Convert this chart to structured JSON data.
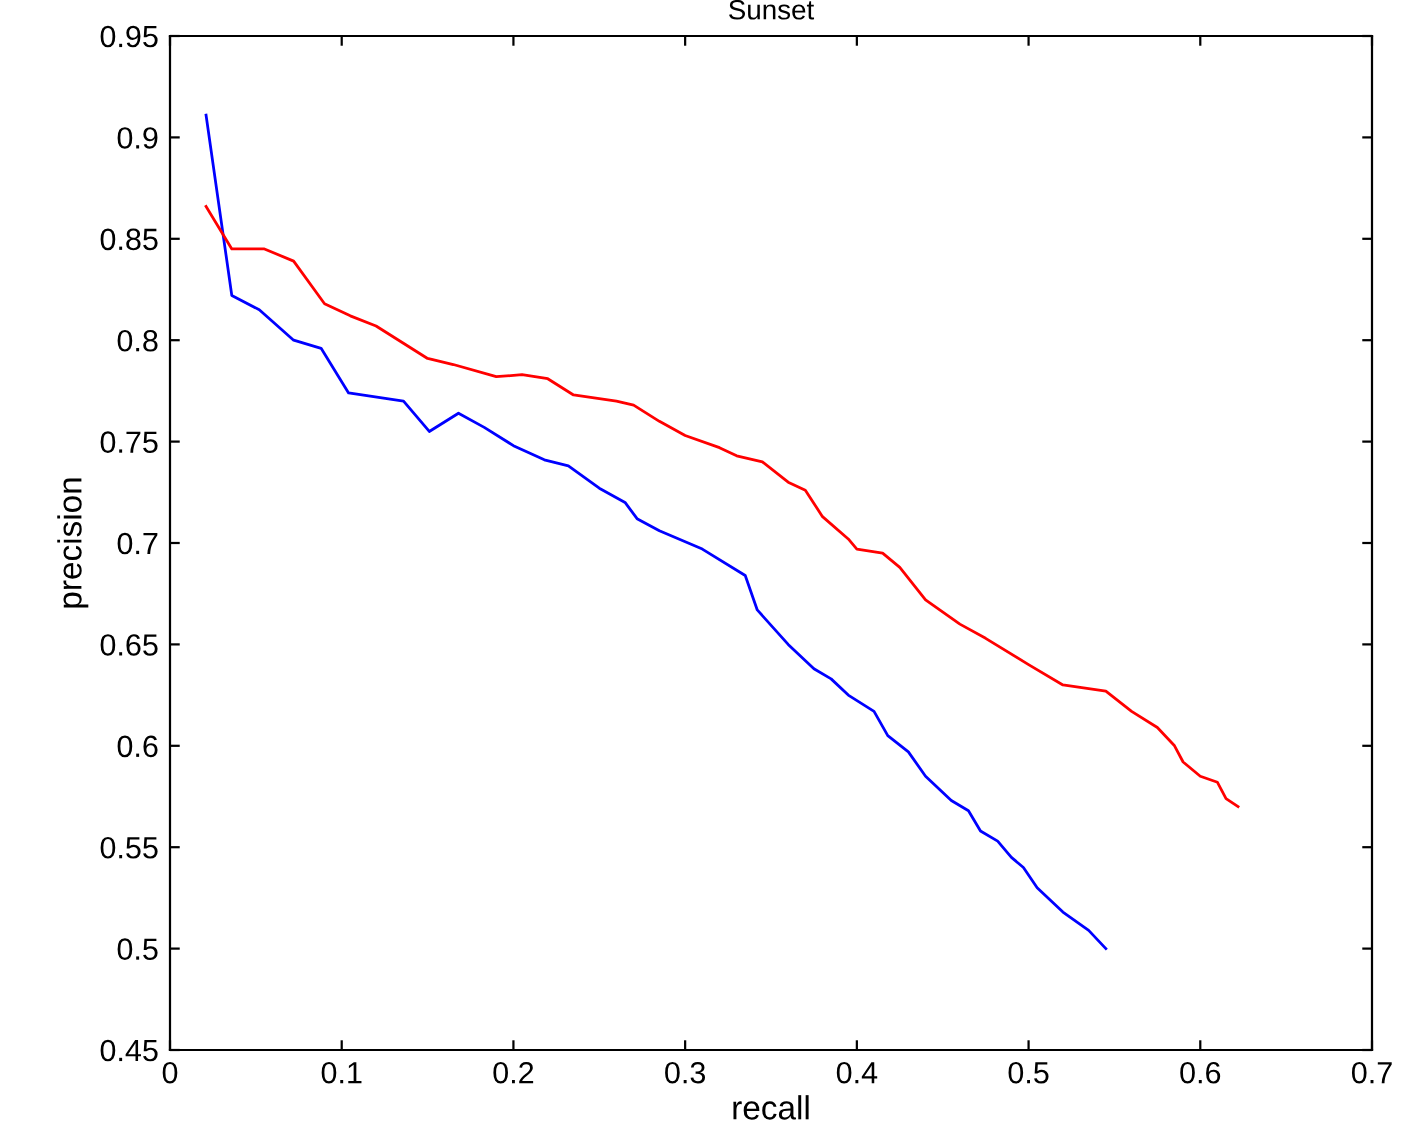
{
  "chart_data": {
    "type": "line",
    "title": "Sunset",
    "xlabel": "recall",
    "ylabel": "precision",
    "xlim": [
      0,
      0.7
    ],
    "ylim": [
      0.45,
      0.95
    ],
    "xticks": [
      0,
      0.1,
      0.2,
      0.3,
      0.4,
      0.5,
      0.6,
      0.7
    ],
    "yticks": [
      0.45,
      0.5,
      0.55,
      0.6,
      0.65,
      0.7,
      0.75,
      0.8,
      0.85,
      0.9,
      0.95
    ],
    "grid": false,
    "legend": false,
    "series": [
      {
        "color": "#0000ff",
        "x": [
          0.021,
          0.036,
          0.052,
          0.072,
          0.088,
          0.104,
          0.136,
          0.151,
          0.168,
          0.183,
          0.2,
          0.218,
          0.232,
          0.25,
          0.265,
          0.272,
          0.285,
          0.31,
          0.335,
          0.342,
          0.36,
          0.375,
          0.385,
          0.395,
          0.41,
          0.418,
          0.43,
          0.44,
          0.455,
          0.465,
          0.472,
          0.482,
          0.49,
          0.497,
          0.505,
          0.52,
          0.535,
          0.545
        ],
        "values": [
          0.911,
          0.822,
          0.815,
          0.8,
          0.796,
          0.774,
          0.77,
          0.755,
          0.764,
          0.757,
          0.748,
          0.741,
          0.738,
          0.727,
          0.72,
          0.712,
          0.706,
          0.697,
          0.684,
          0.667,
          0.65,
          0.638,
          0.633,
          0.625,
          0.617,
          0.605,
          0.597,
          0.585,
          0.573,
          0.568,
          0.558,
          0.553,
          0.545,
          0.54,
          0.53,
          0.518,
          0.509,
          0.5
        ]
      },
      {
        "color": "#ff0000",
        "x": [
          0.021,
          0.036,
          0.055,
          0.072,
          0.09,
          0.105,
          0.12,
          0.135,
          0.15,
          0.165,
          0.19,
          0.205,
          0.22,
          0.235,
          0.26,
          0.27,
          0.285,
          0.3,
          0.32,
          0.33,
          0.345,
          0.36,
          0.37,
          0.38,
          0.395,
          0.4,
          0.415,
          0.425,
          0.44,
          0.46,
          0.475,
          0.5,
          0.52,
          0.545,
          0.56,
          0.575,
          0.585,
          0.59,
          0.6,
          0.61,
          0.615,
          0.622
        ],
        "values": [
          0.866,
          0.845,
          0.845,
          0.839,
          0.818,
          0.812,
          0.807,
          0.799,
          0.791,
          0.788,
          0.782,
          0.783,
          0.781,
          0.773,
          0.77,
          0.768,
          0.76,
          0.753,
          0.747,
          0.743,
          0.74,
          0.73,
          0.726,
          0.713,
          0.702,
          0.697,
          0.695,
          0.688,
          0.672,
          0.66,
          0.653,
          0.64,
          0.63,
          0.627,
          0.617,
          0.609,
          0.6,
          0.592,
          0.585,
          0.582,
          0.574,
          0.57
        ]
      }
    ]
  }
}
